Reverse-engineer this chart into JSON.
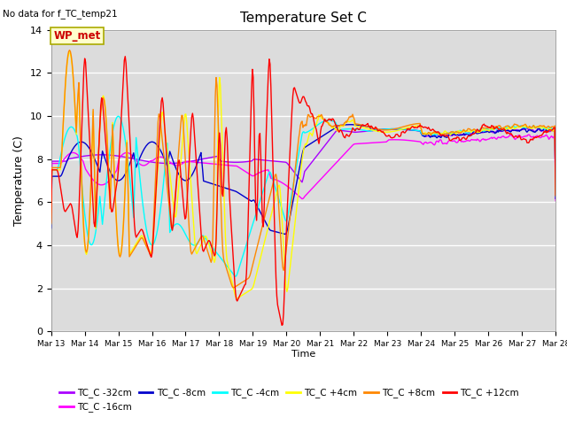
{
  "title": "Temperature Set C",
  "no_data_label": "No data for f_TC_temp21",
  "ylabel": "Temperature (C)",
  "xlabel": "Time",
  "ylim": [
    0,
    14
  ],
  "bg_color": "#dcdcdc",
  "legend_box_color": "#ffffcc",
  "legend_box_edge": "#aaaa00",
  "wp_met_label": "WP_met",
  "series_colors": {
    "TC_C -32cm": "#aa00ff",
    "TC_C -16cm": "#ff00ff",
    "TC_C -8cm": "#0000cc",
    "TC_C -4cm": "#00ffff",
    "TC_C +4cm": "#ffff00",
    "TC_C +8cm": "#ff8800",
    "TC_C +12cm": "#ff0000"
  },
  "x_tick_labels": [
    "Mar 13",
    "Mar 14",
    "Mar 15",
    "Mar 16",
    "Mar 17",
    "Mar 18",
    "Mar 19",
    "Mar 20",
    "Mar 21",
    "Mar 22",
    "Mar 23",
    "Mar 24",
    "Mar 25",
    "Mar 26",
    "Mar 27",
    "Mar 28"
  ],
  "n_points": 600,
  "figsize": [
    6.4,
    4.8
  ],
  "dpi": 100
}
